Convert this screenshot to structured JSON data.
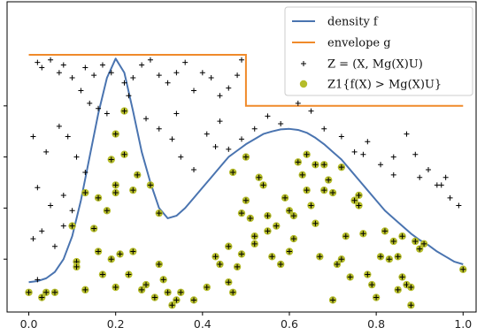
{
  "chart_data": {
    "type": "line+scatter",
    "xlim": [
      -0.05,
      1.03
    ],
    "ylim": [
      0,
      1.0
    ],
    "xticks": [
      0.0,
      0.2,
      0.4,
      0.6,
      0.8,
      1.0
    ],
    "xtick_labels": [
      "0.0",
      "0.2",
      "0.4",
      "0.6",
      "0.8",
      "1.0"
    ],
    "yticks": [
      0.2,
      0.4,
      0.6,
      0.8
    ],
    "ytick_labels": [
      "",
      "",
      "",
      ""
    ],
    "legend": [
      {
        "label": "density f",
        "kind": "line",
        "color": "#4a74b0"
      },
      {
        "label": "envelope g",
        "kind": "line",
        "color": "#f08a2a"
      },
      {
        "label": "Z = (X, Mg(X)U)",
        "kind": "marker",
        "color": "#000000"
      },
      {
        "label": "Z1{f(X) > Mg(X)U}",
        "kind": "marker",
        "color": "#b5bc2a"
      }
    ],
    "legend_position": "top-right",
    "series": [
      {
        "name": "density f",
        "type": "line",
        "color": "#4a74b0",
        "x": [
          0.0,
          0.02,
          0.04,
          0.06,
          0.08,
          0.1,
          0.12,
          0.14,
          0.16,
          0.18,
          0.2,
          0.22,
          0.24,
          0.26,
          0.28,
          0.3,
          0.32,
          0.34,
          0.36,
          0.38,
          0.4,
          0.42,
          0.44,
          0.46,
          0.48,
          0.5,
          0.52,
          0.54,
          0.56,
          0.58,
          0.6,
          0.62,
          0.64,
          0.66,
          0.68,
          0.7,
          0.72,
          0.74,
          0.76,
          0.78,
          0.8,
          0.82,
          0.84,
          0.86,
          0.88,
          0.9,
          0.92,
          0.94,
          0.96,
          0.98,
          1.0
        ],
        "y": [
          0.11,
          0.114,
          0.125,
          0.15,
          0.2,
          0.29,
          0.43,
          0.6,
          0.77,
          0.91,
          0.985,
          0.93,
          0.78,
          0.62,
          0.5,
          0.4,
          0.36,
          0.37,
          0.4,
          0.44,
          0.48,
          0.52,
          0.56,
          0.6,
          0.625,
          0.65,
          0.67,
          0.69,
          0.7,
          0.708,
          0.71,
          0.706,
          0.695,
          0.675,
          0.65,
          0.62,
          0.59,
          0.55,
          0.51,
          0.47,
          0.43,
          0.39,
          0.36,
          0.33,
          0.3,
          0.275,
          0.255,
          0.23,
          0.21,
          0.19,
          0.18
        ]
      },
      {
        "name": "envelope g",
        "type": "step",
        "color": "#f08a2a",
        "x": [
          0.0,
          0.5,
          0.5,
          1.0
        ],
        "y": [
          1.0,
          1.0,
          0.8,
          0.8
        ]
      },
      {
        "name": "Z = (X, Mg(X)U)",
        "type": "scatter",
        "color": "#000000",
        "marker": "+",
        "points": [
          [
            0.02,
            0.97
          ],
          [
            0.03,
            0.95
          ],
          [
            0.05,
            0.98
          ],
          [
            0.07,
            0.93
          ],
          [
            0.08,
            0.96
          ],
          [
            0.1,
            0.91
          ],
          [
            0.13,
            0.95
          ],
          [
            0.15,
            0.92
          ],
          [
            0.17,
            0.96
          ],
          [
            0.19,
            0.93
          ],
          [
            0.22,
            0.89
          ],
          [
            0.24,
            0.91
          ],
          [
            0.26,
            0.96
          ],
          [
            0.28,
            0.98
          ],
          [
            0.3,
            0.92
          ],
          [
            0.32,
            0.89
          ],
          [
            0.34,
            0.93
          ],
          [
            0.36,
            0.97
          ],
          [
            0.38,
            0.86
          ],
          [
            0.4,
            0.93
          ],
          [
            0.42,
            0.91
          ],
          [
            0.44,
            0.84
          ],
          [
            0.46,
            0.87
          ],
          [
            0.48,
            0.92
          ],
          [
            0.49,
            0.98
          ],
          [
            0.12,
            0.86
          ],
          [
            0.14,
            0.81
          ],
          [
            0.16,
            0.79
          ],
          [
            0.18,
            0.77
          ],
          [
            0.01,
            0.68
          ],
          [
            0.04,
            0.62
          ],
          [
            0.07,
            0.72
          ],
          [
            0.09,
            0.68
          ],
          [
            0.11,
            0.6
          ],
          [
            0.13,
            0.54
          ],
          [
            0.02,
            0.48
          ],
          [
            0.05,
            0.41
          ],
          [
            0.08,
            0.45
          ],
          [
            0.1,
            0.39
          ],
          [
            0.01,
            0.28
          ],
          [
            0.03,
            0.31
          ],
          [
            0.06,
            0.25
          ],
          [
            0.08,
            0.33
          ],
          [
            0.02,
            0.12
          ],
          [
            0.27,
            0.75
          ],
          [
            0.3,
            0.71
          ],
          [
            0.33,
            0.67
          ],
          [
            0.35,
            0.6
          ],
          [
            0.38,
            0.55
          ],
          [
            0.41,
            0.69
          ],
          [
            0.44,
            0.74
          ],
          [
            0.46,
            0.63
          ],
          [
            0.49,
            0.67
          ],
          [
            0.52,
            0.71
          ],
          [
            0.55,
            0.76
          ],
          [
            0.58,
            0.73
          ],
          [
            0.62,
            0.81
          ],
          [
            0.65,
            0.78
          ],
          [
            0.68,
            0.71
          ],
          [
            0.72,
            0.68
          ],
          [
            0.75,
            0.62
          ],
          [
            0.78,
            0.66
          ],
          [
            0.81,
            0.57
          ],
          [
            0.84,
            0.53
          ],
          [
            0.87,
            0.69
          ],
          [
            0.89,
            0.61
          ],
          [
            0.92,
            0.55
          ],
          [
            0.95,
            0.49
          ],
          [
            0.97,
            0.44
          ],
          [
            0.99,
            0.41
          ],
          [
            0.77,
            0.61
          ],
          [
            0.84,
            0.6
          ],
          [
            0.9,
            0.52
          ],
          [
            0.94,
            0.49
          ],
          [
            0.96,
            0.52
          ],
          [
            0.43,
            0.64
          ],
          [
            0.34,
            0.77
          ],
          [
            0.23,
            0.84
          ]
        ]
      },
      {
        "name": "Z1{f(X) > Mg(X)U}",
        "type": "scatter",
        "color": "#b5bc2a",
        "marker": "o+",
        "points": [
          [
            0.0,
            0.07
          ],
          [
            0.03,
            0.05
          ],
          [
            0.04,
            0.07
          ],
          [
            0.06,
            0.07
          ],
          [
            0.11,
            0.19
          ],
          [
            0.11,
            0.17
          ],
          [
            0.13,
            0.08
          ],
          [
            0.16,
            0.23
          ],
          [
            0.17,
            0.14
          ],
          [
            0.19,
            0.2
          ],
          [
            0.2,
            0.09
          ],
          [
            0.21,
            0.22
          ],
          [
            0.22,
            0.78
          ],
          [
            0.23,
            0.14
          ],
          [
            0.24,
            0.23
          ],
          [
            0.26,
            0.08
          ],
          [
            0.27,
            0.1
          ],
          [
            0.29,
            0.05
          ],
          [
            0.3,
            0.18
          ],
          [
            0.31,
            0.12
          ],
          [
            0.32,
            0.07
          ],
          [
            0.33,
            0.02
          ],
          [
            0.34,
            0.04
          ],
          [
            0.35,
            0.07
          ],
          [
            0.19,
            0.59
          ],
          [
            0.2,
            0.49
          ],
          [
            0.16,
            0.44
          ],
          [
            0.18,
            0.39
          ],
          [
            0.13,
            0.46
          ],
          [
            0.15,
            0.32
          ],
          [
            0.1,
            0.33
          ],
          [
            0.2,
            0.46
          ],
          [
            0.24,
            0.47
          ],
          [
            0.3,
            0.38
          ],
          [
            0.43,
            0.21
          ],
          [
            0.44,
            0.18
          ],
          [
            0.46,
            0.11
          ],
          [
            0.47,
            0.07
          ],
          [
            0.48,
            0.17
          ],
          [
            0.49,
            0.38
          ],
          [
            0.5,
            0.43
          ],
          [
            0.51,
            0.36
          ],
          [
            0.52,
            0.29
          ],
          [
            0.52,
            0.26
          ],
          [
            0.53,
            0.52
          ],
          [
            0.54,
            0.49
          ],
          [
            0.55,
            0.37
          ],
          [
            0.56,
            0.21
          ],
          [
            0.57,
            0.33
          ],
          [
            0.58,
            0.18
          ],
          [
            0.59,
            0.44
          ],
          [
            0.6,
            0.39
          ],
          [
            0.61,
            0.28
          ],
          [
            0.62,
            0.58
          ],
          [
            0.63,
            0.53
          ],
          [
            0.64,
            0.47
          ],
          [
            0.65,
            0.41
          ],
          [
            0.66,
            0.34
          ],
          [
            0.67,
            0.21
          ],
          [
            0.68,
            0.57
          ],
          [
            0.69,
            0.51
          ],
          [
            0.7,
            0.46
          ],
          [
            0.71,
            0.18
          ],
          [
            0.72,
            0.2
          ],
          [
            0.73,
            0.29
          ],
          [
            0.74,
            0.13
          ],
          [
            0.75,
            0.43
          ],
          [
            0.76,
            0.41
          ],
          [
            0.77,
            0.3
          ],
          [
            0.78,
            0.14
          ],
          [
            0.79,
            0.1
          ],
          [
            0.81,
            0.21
          ],
          [
            0.83,
            0.2
          ],
          [
            0.84,
            0.27
          ],
          [
            0.85,
            0.21
          ],
          [
            0.86,
            0.13
          ],
          [
            0.87,
            0.1
          ],
          [
            0.88,
            0.09
          ],
          [
            0.89,
            0.27
          ],
          [
            0.9,
            0.24
          ],
          [
            0.91,
            0.26
          ],
          [
            1.0,
            0.16
          ],
          [
            0.2,
            0.69
          ],
          [
            0.22,
            0.61
          ],
          [
            0.25,
            0.53
          ],
          [
            0.28,
            0.49
          ],
          [
            0.47,
            0.54
          ],
          [
            0.5,
            0.6
          ],
          [
            0.55,
            0.31
          ],
          [
            0.6,
            0.23
          ],
          [
            0.64,
            0.61
          ],
          [
            0.66,
            0.57
          ],
          [
            0.68,
            0.47
          ],
          [
            0.72,
            0.56
          ],
          [
            0.76,
            0.45
          ],
          [
            0.82,
            0.31
          ],
          [
            0.86,
            0.29
          ],
          [
            0.38,
            0.04
          ],
          [
            0.41,
            0.09
          ],
          [
            0.46,
            0.25
          ],
          [
            0.49,
            0.22
          ],
          [
            0.61,
            0.37
          ],
          [
            0.7,
            0.04
          ],
          [
            0.8,
            0.05
          ],
          [
            0.85,
            0.08
          ],
          [
            0.88,
            0.02
          ]
        ]
      }
    ]
  }
}
